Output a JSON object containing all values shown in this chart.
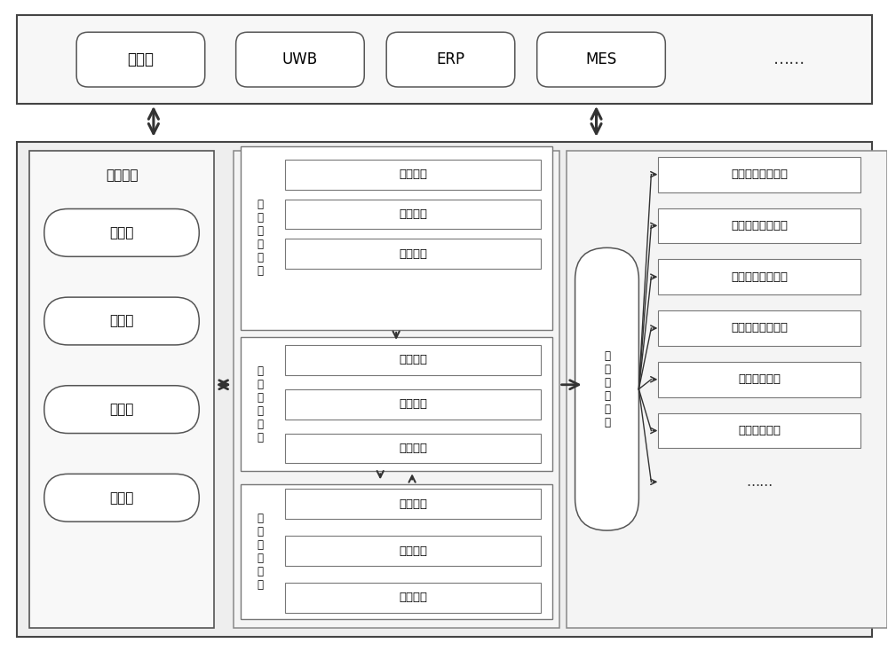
{
  "bg_color": "#ffffff",
  "top_items": [
    "传感器",
    "UWB",
    "ERP",
    "MES",
    "……"
  ],
  "resource_module_label": "资源模块",
  "resource_items": [
    "模型库",
    "资源库",
    "数据库",
    "知识库"
  ],
  "online_sim_label": "在\n线\n仿\n真\n模\n块",
  "online_sim_items": [
    "实时采集",
    "数据驱动",
    "实时显示"
  ],
  "data_proc_label": "数\n据\n处\n理\n模\n块",
  "data_proc_items": [
    "数据接口",
    "数据交互",
    "数据管理"
  ],
  "sys_opt_label": "系\n统\n优\n化\n系\n统",
  "sys_opt_items": [
    "仿真分析",
    "仿真评估",
    "仿真优化"
  ],
  "output_label": "仿\n真\n结\n果\n输\n出",
  "output_items": [
    "整线装配过程动画",
    "工艺过程仿真动画",
    "车间布局优化结果",
    "工艺流程优化结果",
    "布局成本统计",
    "产线平衡统计",
    "……"
  ]
}
